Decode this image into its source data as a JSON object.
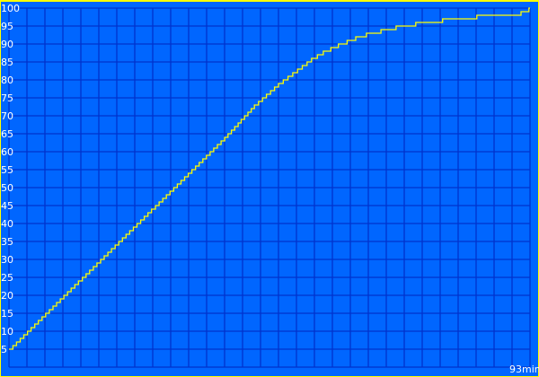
{
  "chart_data": {
    "type": "line",
    "title": "",
    "xlabel": "",
    "ylabel": "",
    "x_unit_label": "93min",
    "xlim": [
      0,
      93
    ],
    "ylim": [
      0,
      100
    ],
    "y_ticks": [
      "100",
      "95",
      "90",
      "85",
      "80",
      "75",
      "70",
      "65",
      "60",
      "55",
      "50",
      "45",
      "40",
      "35",
      "30",
      "25",
      "20",
      "15",
      "10",
      "5"
    ],
    "grid": true,
    "step": true,
    "series": [
      {
        "color": "#ffff00",
        "points": [
          [
            0,
            5
          ],
          [
            38.5,
            64
          ],
          [
            43.8,
            73
          ],
          [
            48.1,
            79
          ],
          [
            54,
            86
          ],
          [
            56.1,
            88
          ],
          [
            58.8,
            90
          ],
          [
            61.9,
            92
          ],
          [
            63.8,
            93
          ],
          [
            66.4,
            94
          ],
          [
            69.1,
            95
          ],
          [
            72.6,
            96
          ],
          [
            77.4,
            97
          ],
          [
            83.5,
            98
          ],
          [
            91.4,
            99
          ],
          [
            92.8,
            100
          ],
          [
            93,
            100
          ]
        ]
      }
    ],
    "colors": {
      "background": "#0066ff",
      "grid": "#0033cc",
      "border": "#ffff00",
      "label": "#ffffff"
    }
  }
}
